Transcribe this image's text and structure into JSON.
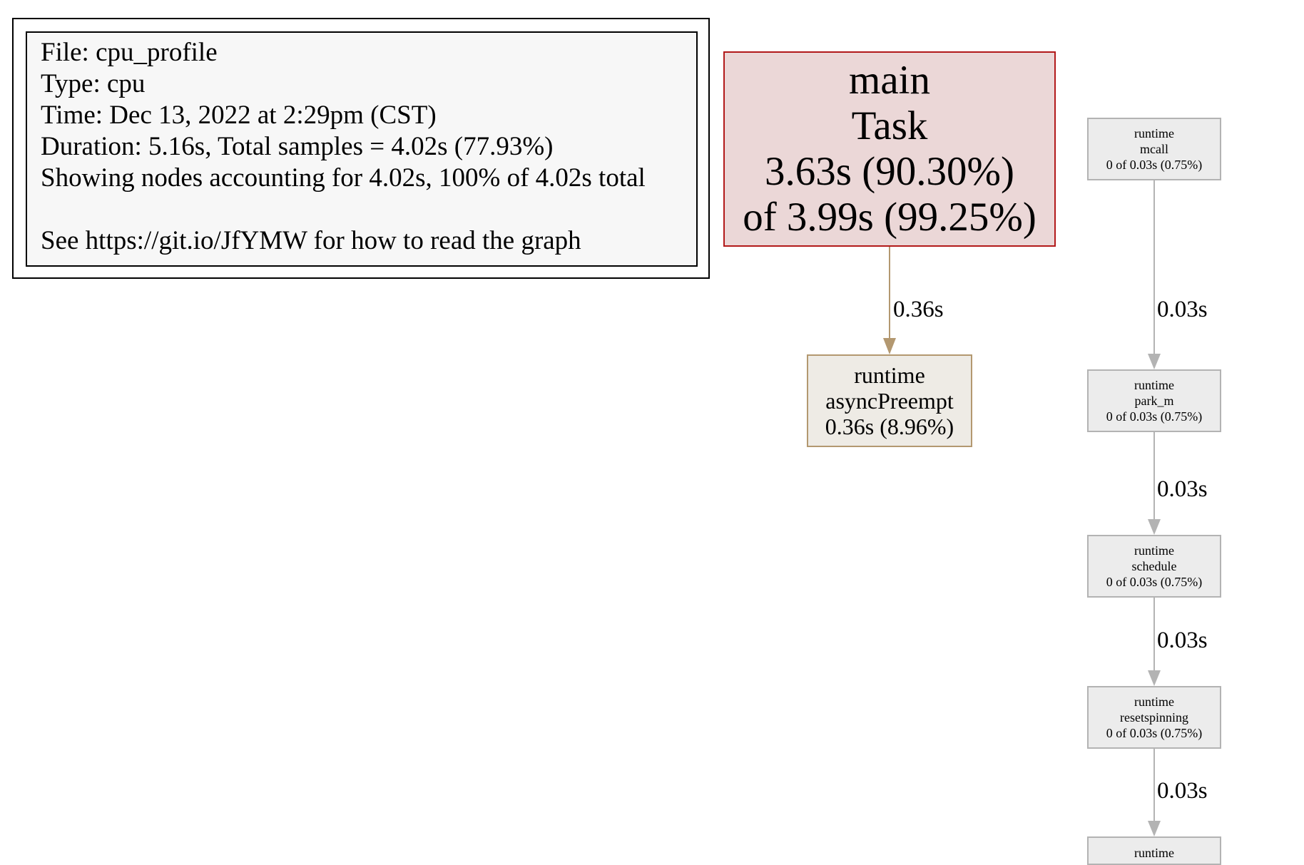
{
  "legend": {
    "file": "File: cpu_profile",
    "type": "Type: cpu",
    "time": "Time: Dec 13, 2022 at 2:29pm (CST)",
    "duration": "Duration: 5.16s, Total samples = 4.02s (77.93%)",
    "showing": "Showing nodes accounting for 4.02s, 100% of 4.02s total",
    "see": "See https://git.io/JfYMW for how to read the graph"
  },
  "nodes": {
    "main_task": {
      "package": "main",
      "function": "Task",
      "flat": "3.63s (90.30%)",
      "cum": "of 3.99s (99.25%)"
    },
    "async_preempt": {
      "package": "runtime",
      "function": "asyncPreempt",
      "flat": "0.36s (8.96%)"
    },
    "mcall": {
      "package": "runtime",
      "function": "mcall",
      "cum": "0 of 0.03s (0.75%)"
    },
    "park_m": {
      "package": "runtime",
      "function": "park_m",
      "cum": "0 of 0.03s (0.75%)"
    },
    "schedule": {
      "package": "runtime",
      "function": "schedule",
      "cum": "0 of 0.03s (0.75%)"
    },
    "resetspinning": {
      "package": "runtime",
      "function": "resetspinning",
      "cum": "0 of 0.03s (0.75%)"
    },
    "next": {
      "package": "runtime"
    }
  },
  "edges": {
    "main_to_preempt": "0.36s",
    "mcall_to_park": "0.03s",
    "park_to_schedule": "0.03s",
    "schedule_to_reset": "0.03s",
    "reset_to_next": "0.03s"
  },
  "colors": {
    "main_fill": "#ebd7d7",
    "main_border": "#b2191a",
    "preempt_fill": "#eeebe5",
    "preempt_border": "#b39870",
    "preempt_edge": "#b39870",
    "gray_fill": "#ececec",
    "gray_border": "#b3b3b3",
    "gray_edge": "#b3b3b3"
  }
}
